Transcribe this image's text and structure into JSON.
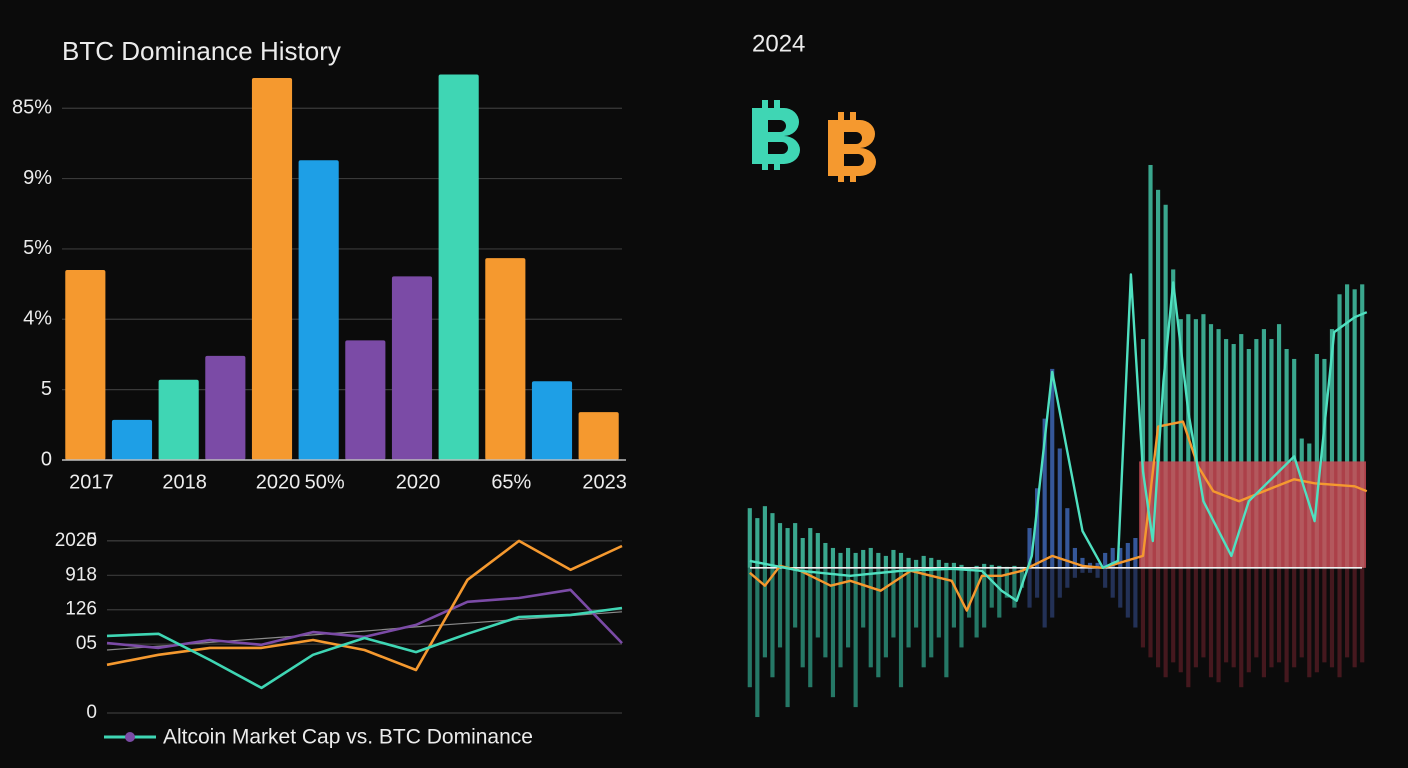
{
  "chart_data": [
    {
      "type": "bar",
      "title": "BTC Dominance History",
      "categories": [
        "2017",
        null,
        "2018",
        null,
        "2020",
        "50%",
        null,
        "2020",
        null,
        "65%",
        null,
        "2023"
      ],
      "values": [
        2.7,
        0.57,
        1.14,
        1.48,
        5.43,
        4.26,
        1.7,
        2.61,
        5.48,
        2.87,
        1.12,
        0.68
      ],
      "colors": [
        "#f5992f",
        "#1e9fe6",
        "#3fd6b4",
        "#7b4ba6",
        "#f5992f",
        "#1e9fe6",
        "#7b4ba6",
        "#7b4ba6",
        "#3fd6b4",
        "#f5992f",
        "#1e9fe6",
        "#f5992f"
      ],
      "ylim": [
        0,
        5.6
      ],
      "yticks": [
        0,
        {
          "value": 1,
          "label": "5"
        },
        {
          "value": 2,
          "label": "4%"
        },
        {
          "value": 3,
          "label": "5%"
        },
        {
          "value": 4,
          "label": "9%"
        },
        {
          "value": 5,
          "label": "85%"
        }
      ],
      "grid": true
    },
    {
      "type": "line",
      "legend": "Altcoin Market Cap vs. BTC Dominance",
      "x": [
        0,
        1,
        2,
        3,
        4,
        5,
        6,
        7,
        8,
        9,
        10
      ],
      "xlim": [
        0,
        10
      ],
      "series": [
        {
          "color": "#8a8a8a",
          "values": [
            1.83,
            1.94,
            2.05,
            2.16,
            2.27,
            2.38,
            2.5,
            2.61,
            2.72,
            2.83,
            2.94
          ]
        },
        {
          "color": "#7b4ba6",
          "values": [
            2.03,
            1.89,
            2.12,
            1.98,
            2.35,
            2.21,
            2.56,
            3.23,
            3.34,
            3.58,
            2.03
          ]
        },
        {
          "color": "#f5992f",
          "values": [
            1.4,
            1.69,
            1.89,
            1.89,
            2.12,
            1.83,
            1.25,
            3.87,
            5.0,
            4.16,
            4.85
          ]
        },
        {
          "color": "#3fd6b4",
          "values": [
            2.24,
            2.3,
            1.54,
            0.73,
            1.69,
            2.18,
            1.77,
            2.3,
            2.79,
            2.85,
            3.05
          ]
        }
      ],
      "ylim": [
        0,
        5.2
      ],
      "yticks": [
        0,
        5,
        {
          "value": 2,
          "label": "05"
        },
        {
          "value": 3,
          "label": "126"
        },
        {
          "value": 4,
          "label": "918"
        },
        {
          "value": 5,
          "label": "2020"
        }
      ],
      "grid": true
    },
    {
      "type": "combo",
      "title": "2024",
      "xlim": [
        -0.5,
        81.5
      ],
      "ylim": [
        -160,
        410
      ],
      "up": {
        "values": [
          60,
          50,
          62,
          55,
          45,
          40,
          45,
          30,
          40,
          35,
          25,
          20,
          15,
          20,
          15,
          18,
          20,
          15,
          12,
          18,
          15,
          10,
          8,
          12,
          10,
          8,
          5,
          5,
          3,
          0,
          2,
          4,
          3,
          2,
          1,
          2,
          1,
          40,
          80,
          150,
          200,
          120,
          60,
          20,
          10,
          5,
          5,
          15,
          20,
          20,
          25,
          30,
          230,
          405,
          380,
          365,
          300,
          250,
          255,
          250,
          255,
          245,
          240,
          230,
          225,
          235,
          220,
          230,
          240,
          230,
          245,
          220,
          210,
          130,
          125,
          215,
          210,
          240,
          275,
          285,
          280,
          285
        ],
        "colors": [
          "#3fb89c",
          "#3a5fa8",
          "#3fb89c"
        ],
        "splits": [
          37,
          52
        ]
      },
      "down": {
        "values": [
          -120,
          -150,
          -90,
          -110,
          -80,
          -140,
          -60,
          -100,
          -120,
          -70,
          -90,
          -130,
          -100,
          -80,
          -140,
          -60,
          -100,
          -110,
          -90,
          -70,
          -120,
          -80,
          -60,
          -100,
          -90,
          -70,
          -110,
          -60,
          -80,
          -50,
          -70,
          -60,
          -40,
          -50,
          -30,
          -40,
          -20,
          -40,
          -30,
          -60,
          -50,
          -30,
          -20,
          -10,
          -5,
          -5,
          -10,
          -20,
          -30,
          -40,
          -50,
          -60,
          -80,
          -90,
          -100,
          -110,
          -95,
          -105,
          -120,
          -100,
          -90,
          -110,
          -115,
          -95,
          -100,
          -120,
          -105,
          -90,
          -110,
          -100,
          -95,
          -115,
          -100,
          -90,
          -110,
          -105,
          -95,
          -100,
          -110,
          -90,
          -100,
          -95
        ],
        "colors": [
          "#2f9e86",
          "#2c3f70",
          "#5a1e26"
        ],
        "splits": [
          37,
          52
        ]
      },
      "highlight": {
        "from": 51.5,
        "to": 81.5,
        "value": 107,
        "color": "#c94a55"
      },
      "lines": [
        {
          "color": "#f5992f",
          "x": [
            0,
            2,
            4,
            6.7,
            10.7,
            13.3,
            17.3,
            21.3,
            24,
            26.7,
            28.7,
            30.7,
            33.3,
            36,
            40,
            44,
            46.7,
            52,
            54,
            57.3,
            59.3,
            61.3,
            64.7,
            68,
            72,
            74.7,
            80,
            81.6
          ],
          "values": [
            -5,
            -18,
            2,
            -3,
            -18,
            -13,
            -23,
            -3,
            -8,
            -13,
            -43,
            -8,
            -8,
            -3,
            12,
            2,
            0,
            12,
            142,
            147,
            102,
            77,
            67,
            77,
            89,
            85,
            82,
            77
          ]
        },
        {
          "color": "#4fe0c0",
          "x": [
            0,
            6.7,
            13.3,
            20,
            26.7,
            30.7,
            33.3,
            35.3,
            37.3,
            40,
            42,
            44,
            46.7,
            48.7,
            50.4,
            52,
            53.3,
            54.7,
            56,
            58,
            60,
            63.7,
            66,
            72,
            74.7,
            77.3,
            80,
            81.6
          ],
          "values": [
            7,
            -3,
            -8,
            -3,
            -1,
            -3,
            -23,
            -33,
            12,
            197,
            117,
            37,
            0,
            7,
            295,
            97,
            27,
            187,
            287,
            157,
            67,
            12,
            67,
            112,
            47,
            237,
            252,
            257
          ]
        }
      ]
    }
  ]
}
